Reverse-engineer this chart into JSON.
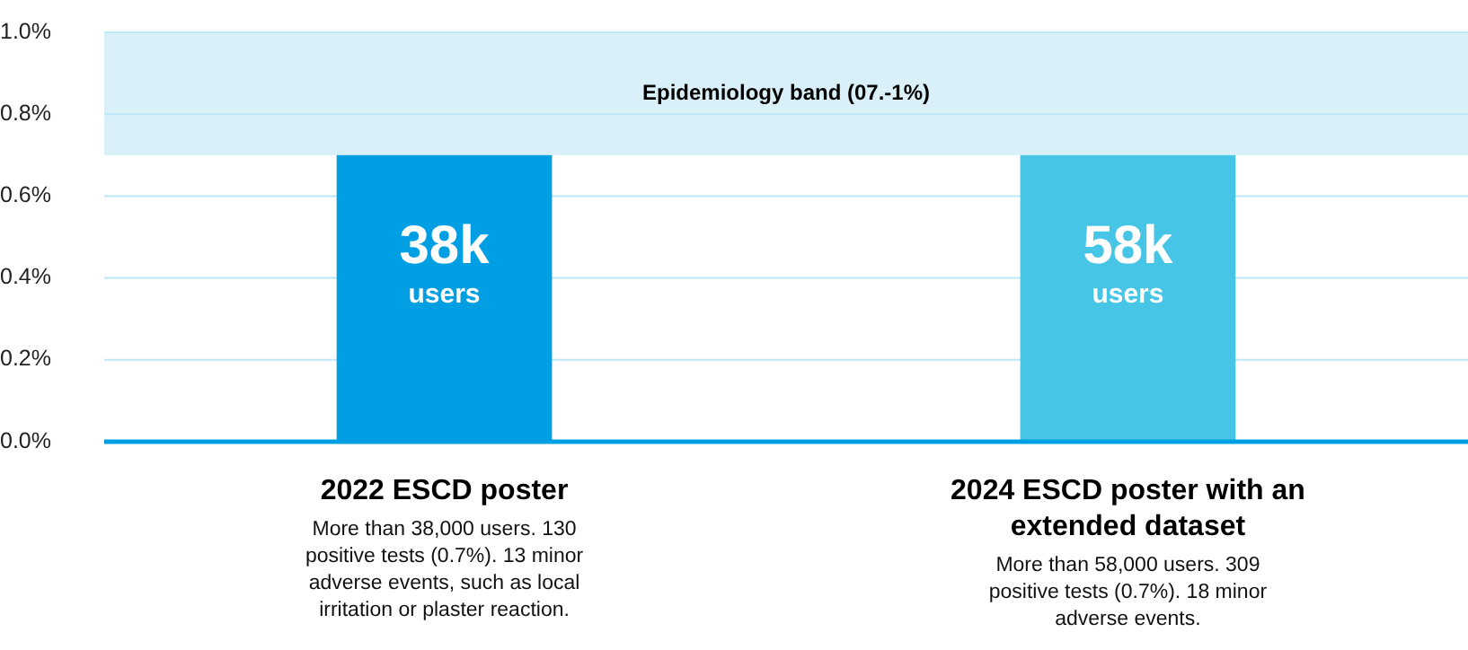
{
  "chart_data": {
    "type": "bar",
    "categories": [
      "2022 ESCD poster",
      "2024 ESCD poster with an extended dataset"
    ],
    "values": [
      0.7,
      0.7
    ],
    "colors": [
      "#009fe3",
      "#47c5e6"
    ],
    "ylim": [
      0,
      1.0
    ],
    "yticks": [
      {
        "value": 0,
        "label": "0.0%"
      },
      {
        "value": 0.2,
        "label": "0.2%"
      },
      {
        "value": 0.4,
        "label": "0.4%"
      },
      {
        "value": 0.6,
        "label": "0.6%"
      },
      {
        "value": 0.8,
        "label": "0.8%"
      },
      {
        "value": 1.0,
        "label": "1.0%"
      }
    ],
    "grid": "y",
    "bands": [
      {
        "axis": "y",
        "from": 0.7,
        "to": 1.0,
        "label": "Epidemiology band (07.-1%)",
        "color": "#d9f0f9"
      }
    ],
    "annotations": [
      "38k users",
      "58k users",
      "More than 38,000 users. 130 positive tests (0.7%). 13 minor adverse events, such as local irritation or plaster reaction.",
      "More than 58,000 users. 309 positive tests (0.7%). 18 minor adverse events."
    ]
  }
}
